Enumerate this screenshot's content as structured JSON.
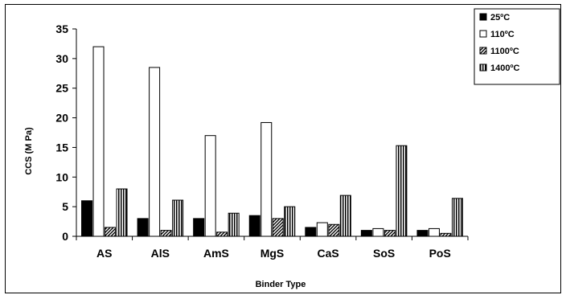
{
  "chart_data": {
    "type": "bar",
    "title": "",
    "xlabel": "Binder Type",
    "ylabel": "CCS (M Pa)",
    "ylim": [
      0,
      35
    ],
    "yticks": [
      0,
      5,
      10,
      15,
      20,
      25,
      30,
      35
    ],
    "categories": [
      "AS",
      "AlS",
      "AmS",
      "MgS",
      "CaS",
      "SoS",
      "PoS"
    ],
    "series": [
      {
        "name": "25ºC",
        "pattern": "solid",
        "values": [
          6.0,
          3.0,
          3.0,
          3.5,
          1.5,
          1.0,
          1.0
        ]
      },
      {
        "name": "110ºC",
        "pattern": "open",
        "values": [
          32.0,
          28.5,
          17.0,
          19.2,
          2.3,
          1.3,
          1.3
        ]
      },
      {
        "name": "1100ºC",
        "pattern": "diagonal",
        "values": [
          1.5,
          1.0,
          0.7,
          3.0,
          2.0,
          1.0,
          0.5
        ]
      },
      {
        "name": "1400ºC",
        "pattern": "vertical",
        "values": [
          8.0,
          6.1,
          3.9,
          5.0,
          6.9,
          15.3,
          6.4
        ]
      }
    ],
    "grid": false,
    "legend_position": "top-right"
  }
}
